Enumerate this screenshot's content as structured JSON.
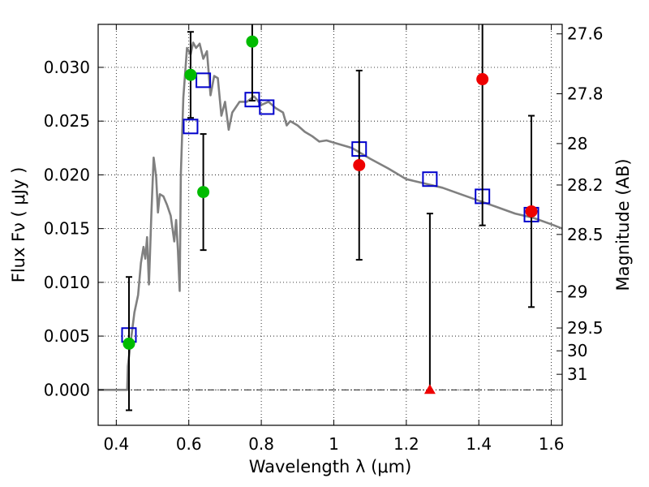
{
  "chart_data": {
    "type": "scatter",
    "xlim": [
      0.35,
      1.63
    ],
    "ylim": [
      -0.0033,
      0.034
    ],
    "grid": true,
    "xlabel": "Wavelength  λ (μm)",
    "ylabel": "Flux  Fν ( μJy )",
    "ylabel_right": "Magnitude (AB)",
    "x_ticks": [
      {
        "value": 0.4,
        "label": "0.4"
      },
      {
        "value": 0.6,
        "label": "0.6"
      },
      {
        "value": 0.8,
        "label": "0.8"
      },
      {
        "value": 1.0,
        "label": "1"
      },
      {
        "value": 1.2,
        "label": "1.2"
      },
      {
        "value": 1.4,
        "label": "1.4"
      },
      {
        "value": 1.6,
        "label": "1.6"
      }
    ],
    "y_ticks": [
      {
        "value": 0.0,
        "label": "0.000"
      },
      {
        "value": 0.005,
        "label": "0.005"
      },
      {
        "value": 0.01,
        "label": "0.010"
      },
      {
        "value": 0.015,
        "label": "0.015"
      },
      {
        "value": 0.02,
        "label": "0.020"
      },
      {
        "value": 0.025,
        "label": "0.025"
      },
      {
        "value": 0.03,
        "label": "0.030"
      }
    ],
    "right_ticks": [
      {
        "mag": 27.6,
        "label": "27.6"
      },
      {
        "mag": 27.8,
        "label": "27.8"
      },
      {
        "mag": 28.0,
        "label": "28"
      },
      {
        "mag": 28.2,
        "label": "28.2"
      },
      {
        "mag": 28.5,
        "label": "28.5"
      },
      {
        "mag": 29.0,
        "label": "29"
      },
      {
        "mag": 29.5,
        "label": "29.5"
      },
      {
        "mag": 30.0,
        "label": "30"
      },
      {
        "mag": 31.0,
        "label": "31"
      }
    ],
    "colors": {
      "sed": "#808080",
      "model": "#0000cc",
      "detection": "#00bb00",
      "other": "#ee0000",
      "errorbar": "#000000",
      "zero_line": "#000000"
    },
    "sed_template": [
      [
        0.35,
        0.0
      ],
      [
        0.43,
        0.0
      ],
      [
        0.432,
        0.0022
      ],
      [
        0.44,
        0.0045
      ],
      [
        0.45,
        0.0072
      ],
      [
        0.46,
        0.0088
      ],
      [
        0.468,
        0.0118
      ],
      [
        0.475,
        0.0133
      ],
      [
        0.48,
        0.0122
      ],
      [
        0.485,
        0.0142
      ],
      [
        0.49,
        0.0098
      ],
      [
        0.497,
        0.0166
      ],
      [
        0.503,
        0.0216
      ],
      [
        0.51,
        0.0198
      ],
      [
        0.515,
        0.0165
      ],
      [
        0.52,
        0.0182
      ],
      [
        0.53,
        0.018
      ],
      [
        0.54,
        0.0172
      ],
      [
        0.55,
        0.0162
      ],
      [
        0.56,
        0.0138
      ],
      [
        0.565,
        0.0158
      ],
      [
        0.57,
        0.013
      ],
      [
        0.575,
        0.0092
      ],
      [
        0.578,
        0.02
      ],
      [
        0.585,
        0.0272
      ],
      [
        0.595,
        0.0318
      ],
      [
        0.605,
        0.0312
      ],
      [
        0.612,
        0.0323
      ],
      [
        0.62,
        0.0318
      ],
      [
        0.63,
        0.0322
      ],
      [
        0.64,
        0.0308
      ],
      [
        0.65,
        0.0315
      ],
      [
        0.66,
        0.0274
      ],
      [
        0.67,
        0.0292
      ],
      [
        0.68,
        0.029
      ],
      [
        0.69,
        0.0255
      ],
      [
        0.7,
        0.0268
      ],
      [
        0.71,
        0.0242
      ],
      [
        0.72,
        0.0258
      ],
      [
        0.74,
        0.0268
      ],
      [
        0.76,
        0.0268
      ],
      [
        0.78,
        0.0273
      ],
      [
        0.8,
        0.0265
      ],
      [
        0.82,
        0.0268
      ],
      [
        0.84,
        0.0262
      ],
      [
        0.86,
        0.0258
      ],
      [
        0.87,
        0.0246
      ],
      [
        0.88,
        0.025
      ],
      [
        0.9,
        0.0246
      ],
      [
        0.92,
        0.024
      ],
      [
        0.94,
        0.0236
      ],
      [
        0.96,
        0.0231
      ],
      [
        0.98,
        0.0232
      ],
      [
        1.0,
        0.023
      ],
      [
        1.05,
        0.0225
      ],
      [
        1.1,
        0.0215
      ],
      [
        1.15,
        0.0206
      ],
      [
        1.2,
        0.0196
      ],
      [
        1.25,
        0.0192
      ],
      [
        1.3,
        0.0188
      ],
      [
        1.35,
        0.0182
      ],
      [
        1.4,
        0.0176
      ],
      [
        1.45,
        0.017
      ],
      [
        1.5,
        0.0164
      ],
      [
        1.55,
        0.016
      ],
      [
        1.6,
        0.0154
      ],
      [
        1.63,
        0.015
      ]
    ],
    "model_points": [
      [
        0.435,
        0.0051
      ],
      [
        0.605,
        0.0245
      ],
      [
        0.64,
        0.0288
      ],
      [
        0.775,
        0.027
      ],
      [
        0.815,
        0.0263
      ],
      [
        1.07,
        0.0224
      ],
      [
        1.265,
        0.0196
      ],
      [
        1.41,
        0.018
      ],
      [
        1.545,
        0.0163
      ]
    ],
    "measurements": [
      {
        "x": 0.435,
        "y": 0.0043,
        "yerr": 0.0062,
        "kind": "detection",
        "marker": "circle"
      },
      {
        "x": 0.605,
        "y": 0.0293,
        "yerr": 0.004,
        "kind": "detection",
        "marker": "circle"
      },
      {
        "x": 0.64,
        "y": 0.0184,
        "yerr": 0.0054,
        "kind": "detection",
        "marker": "circle"
      },
      {
        "x": 0.775,
        "y": 0.0324,
        "yerr": 0.0055,
        "kind": "detection",
        "marker": "circle"
      },
      {
        "x": 1.07,
        "y": 0.0209,
        "yerr": 0.0088,
        "kind": "other",
        "marker": "circle"
      },
      {
        "x": 1.265,
        "y": 0.0,
        "yerr_hi": 0.0164,
        "yerr_lo": 0.0,
        "kind": "other",
        "marker": "triangle"
      },
      {
        "x": 1.41,
        "y": 0.0289,
        "yerr": 0.0136,
        "kind": "other",
        "marker": "circle"
      },
      {
        "x": 1.545,
        "y": 0.0166,
        "yerr": 0.0089,
        "kind": "other",
        "marker": "circle"
      }
    ]
  }
}
